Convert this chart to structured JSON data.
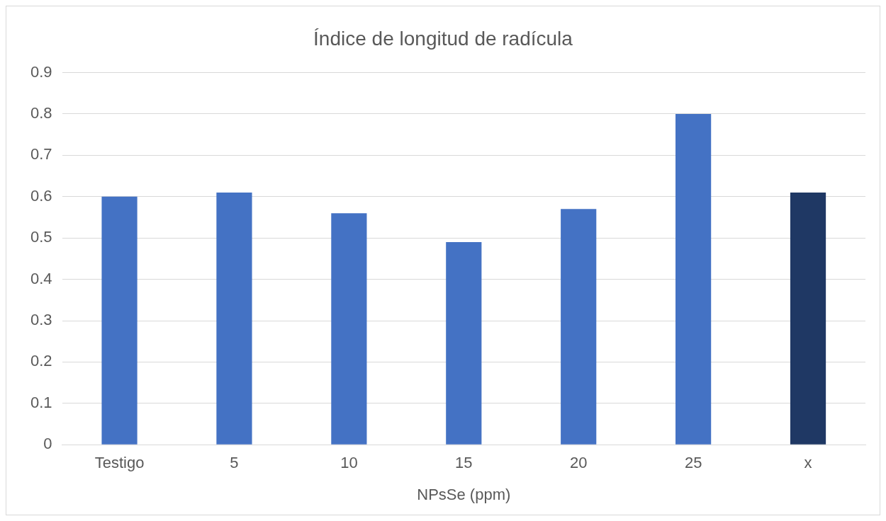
{
  "chart_data": {
    "type": "bar",
    "title": "Índice de longitud de radícula",
    "xlabel": "NPsSe (ppm)",
    "categories": [
      "Testigo",
      "5",
      "10",
      "15",
      "20",
      "25",
      "x"
    ],
    "values": [
      0.6,
      0.61,
      0.56,
      0.49,
      0.57,
      0.8,
      0.61
    ],
    "colors": [
      "#4472c4",
      "#4472c4",
      "#4472c4",
      "#4472c4",
      "#4472c4",
      "#4472c4",
      "#1f3864"
    ],
    "ylim": [
      0,
      0.9
    ],
    "yticks": [
      0,
      0.1,
      0.2,
      0.3,
      0.4,
      0.5,
      0.6,
      0.7,
      0.8,
      0.9
    ],
    "grid": "y",
    "legend": false
  }
}
